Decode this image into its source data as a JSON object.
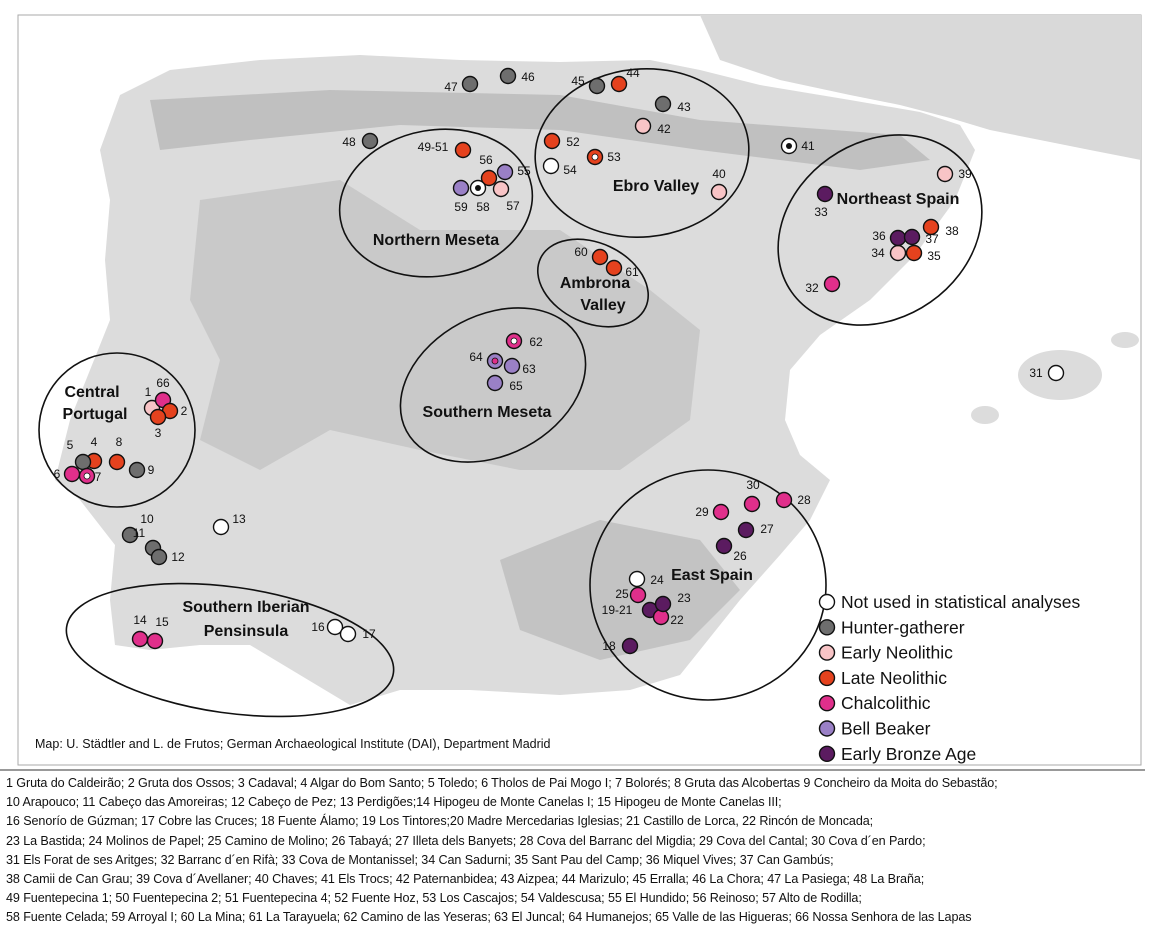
{
  "credit": "Map: U. Städtler and L. de Frutos; German Archaeological Institute (DAI), Department Madrid",
  "legend": [
    {
      "label": "Not used in statistical analyses",
      "color": "#ffffff"
    },
    {
      "label": "Hunter-gatherer",
      "color": "#6e6e6e"
    },
    {
      "label": "Early Neolithic",
      "color": "#f8c4c6"
    },
    {
      "label": "Late Neolithic",
      "color": "#e5421e"
    },
    {
      "label": "Chalcolithic",
      "color": "#e02f8b"
    },
    {
      "label": "Bell Beaker",
      "color": "#9a80c6"
    },
    {
      "label": "Early Bronze Age",
      "color": "#5b1b60"
    }
  ],
  "regions": [
    {
      "name": "Central Portugal",
      "lines": [
        "Central",
        "Portugal"
      ]
    },
    {
      "name": "Northern Meseta",
      "lines": [
        "Northern Meseta"
      ]
    },
    {
      "name": "Ebro Valley",
      "lines": [
        "Ebro Valley"
      ]
    },
    {
      "name": "Ambrona Valley",
      "lines": [
        "Ambrona",
        "Valley"
      ]
    },
    {
      "name": "Northeast Spain",
      "lines": [
        "Northeast Spain"
      ]
    },
    {
      "name": "Southern Meseta",
      "lines": [
        "Southern Meseta"
      ]
    },
    {
      "name": "East Spain",
      "lines": [
        "East Spain"
      ]
    },
    {
      "name": "Southern Iberian Pensinsula",
      "lines": [
        "Southern Iberian",
        "Pensinsula"
      ]
    }
  ],
  "sites": [
    {
      "label": "1",
      "cat": 2
    },
    {
      "label": "66",
      "cat": 4
    },
    {
      "label": "2",
      "cat": 3
    },
    {
      "label": "3",
      "cat": 3
    },
    {
      "label": "4",
      "cat": 3
    },
    {
      "label": "5",
      "cat": 1
    },
    {
      "label": "8",
      "cat": 3
    },
    {
      "label": "9",
      "cat": 1
    },
    {
      "label": "6",
      "cat": 4
    },
    {
      "label": "7",
      "cat": 4,
      "ring": true
    },
    {
      "label": "10",
      "cat": 1
    },
    {
      "label": "11",
      "cat": 1
    },
    {
      "label": "12",
      "cat": 1
    },
    {
      "label": "13",
      "cat": 0
    },
    {
      "label": "14",
      "cat": 4
    },
    {
      "label": "15",
      "cat": 4
    },
    {
      "label": "16",
      "cat": 0
    },
    {
      "label": "17",
      "cat": 0
    },
    {
      "label": "18",
      "cat": 6
    },
    {
      "label": "19-21",
      "cat": 6
    },
    {
      "label": "22",
      "cat": 4
    },
    {
      "label": "23",
      "cat": 6
    },
    {
      "label": "24",
      "cat": 0
    },
    {
      "label": "25",
      "cat": 4
    },
    {
      "label": "26",
      "cat": 6
    },
    {
      "label": "27",
      "cat": 6
    },
    {
      "label": "28",
      "cat": 4
    },
    {
      "label": "29",
      "cat": 4
    },
    {
      "label": "30",
      "cat": 4
    },
    {
      "label": "31",
      "cat": 0
    },
    {
      "label": "32",
      "cat": 4
    },
    {
      "label": "33",
      "cat": 6
    },
    {
      "label": "34",
      "cat": 2
    },
    {
      "label": "35",
      "cat": 3
    },
    {
      "label": "36",
      "cat": 6
    },
    {
      "label": "37",
      "cat": 6
    },
    {
      "label": "38",
      "cat": 3
    },
    {
      "label": "39",
      "cat": 2
    },
    {
      "label": "40",
      "cat": 2
    },
    {
      "label": "41",
      "cat": 0,
      "ring": true
    },
    {
      "label": "42",
      "cat": 2
    },
    {
      "label": "43",
      "cat": 1
    },
    {
      "label": "44",
      "cat": 3
    },
    {
      "label": "45",
      "cat": 1
    },
    {
      "label": "46",
      "cat": 1
    },
    {
      "label": "47",
      "cat": 1
    },
    {
      "label": "48",
      "cat": 1
    },
    {
      "label": "49-51",
      "cat": 3
    },
    {
      "label": "52",
      "cat": 3
    },
    {
      "label": "53",
      "cat": 3,
      "ring": true
    },
    {
      "label": "54",
      "cat": 0
    },
    {
      "label": "55",
      "cat": 5
    },
    {
      "label": "56",
      "cat": 3
    },
    {
      "label": "57",
      "cat": 2
    },
    {
      "label": "58",
      "cat": 0,
      "ring": true
    },
    {
      "label": "59",
      "cat": 5
    },
    {
      "label": "60",
      "cat": 3
    },
    {
      "label": "61",
      "cat": 3
    },
    {
      "label": "62",
      "cat": 4,
      "ring": true
    },
    {
      "label": "63",
      "cat": 5
    },
    {
      "label": "64",
      "cat": 5,
      "ring": true
    },
    {
      "label": "65",
      "cat": 5
    }
  ],
  "caption": [
    "1 Gruta do Caldeirão; 2 Gruta dos Ossos; 3 Cadaval; 4 Algar do Bom Santo; 5 Toledo;  6 Tholos de Pai Mogo I; 7 Bolorés; 8 Gruta das Alcobertas 9 Concheiro da Moita do Sebastão;",
    "10 Arapouco; 11 Cabeço das Amoreiras; 12 Cabeço de Pez; 13 Perdigões;14 Hipogeu de Monte Canelas I; 15 Hipogeu de Monte Canelas III;",
    "16 Senorío de Gúzman; 17 Cobre las Cruces; 18 Fuente Álamo; 19 Los Tintores;20 Madre Mercedarias Iglesias; 21 Castillo de Lorca, 22 Rincón de Moncada;",
    "23 La Bastida; 24 Molinos de Papel; 25 Camino de Molino; 26 Tabayá; 27 Illeta dels Banyets; 28 Cova del Barranc del Migdia; 29 Cova del Cantal; 30 Cova d´en Pardo;",
    "31 Els Forat de ses Aritges; 32 Barranc d´en Rifà; 33 Cova de Montanissel; 34 Can Sadurni; 35 Sant Pau del Camp; 36 Miquel Vives; 37 Can Gambús;",
    "38 Camii de Can Grau; 39 Cova d´Avellaner; 40 Chaves; 41 Els Trocs; 42 Paternanbidea; 43 Aizpea; 44 Marizulo; 45 Erralla; 46 La Chora; 47 La Pasiega; 48 La Braña;",
    "49 Fuentepecina 1; 50 Fuentepecina 2; 51 Fuentepecina 4; 52 Fuente Hoz, 53 Los Cascajos; 54 Valdescusa; 55 El Hundido; 56 Reinoso; 57 Alto de Rodilla;",
    "58 Fuente Celada; 59 Arroyal I; 60 La Mina; 61 La Tarayuela; 62 Camino de las Yeseras; 63 El Juncal; 64 Humanejos; 65 Valle de las Higueras; 66 Nossa Senhora de las Lapas"
  ]
}
